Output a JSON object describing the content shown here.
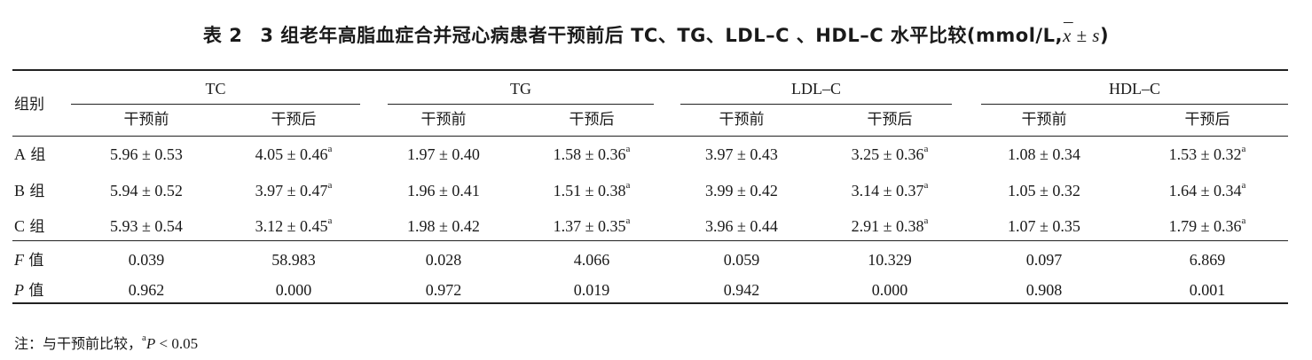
{
  "title": {
    "prefix": "表 2",
    "main": "3 组老年高脂血症合并冠心病患者干预前后 TC、TG、LDL–C 、HDL–C 水平比较(mmol/L,",
    "xbar_x": "x",
    "xbar_bar": "¯",
    "suffix": " ± s",
    "close": ")"
  },
  "table": {
    "row_header": "组别",
    "groups": [
      "TC",
      "TG",
      "LDL–C",
      "HDL–C"
    ],
    "subheaders": [
      "干预前",
      "干预后",
      "干预前",
      "干预后",
      "干预前",
      "干预后",
      "干预前",
      "干预后"
    ],
    "data_rows": [
      {
        "letter": "A",
        "suffix": " 组",
        "values": [
          "5.96 ± 0.53",
          "4.05 ± 0.46",
          "1.97 ± 0.40",
          "1.58 ± 0.36",
          "3.97 ± 0.43",
          "3.25 ± 0.36",
          "1.08 ± 0.34",
          "1.53 ± 0.32"
        ]
      },
      {
        "letter": "B",
        "suffix": " 组",
        "values": [
          "5.94 ± 0.52",
          "3.97 ± 0.47",
          "1.96 ± 0.41",
          "1.51 ± 0.38",
          "3.99 ± 0.42",
          "3.14 ± 0.37",
          "1.05 ± 0.32",
          "1.64 ± 0.34"
        ]
      },
      {
        "letter": "C",
        "suffix": " 组",
        "values": [
          "5.93 ± 0.54",
          "3.12 ± 0.45",
          "1.98 ± 0.42",
          "1.37 ± 0.35",
          "3.96 ± 0.44",
          "2.91 ± 0.38",
          "1.07 ± 0.35",
          "1.79 ± 0.36"
        ]
      }
    ],
    "sup_mark": "a",
    "stat_rows": [
      {
        "letter": "F",
        "suffix": " 值",
        "values": [
          "0.039",
          "58.983",
          "0.028",
          "4.066",
          "0.059",
          "10.329",
          "0.097",
          "6.869"
        ]
      },
      {
        "letter": "P",
        "suffix": " 值",
        "values": [
          "0.962",
          "0.000",
          "0.972",
          "0.019",
          "0.942",
          "0.000",
          "0.908",
          "0.001"
        ]
      }
    ]
  },
  "note": {
    "prefix": "注：与干预前比较，",
    "sup": "a",
    "letter": "P",
    "rest": " < 0.05"
  }
}
